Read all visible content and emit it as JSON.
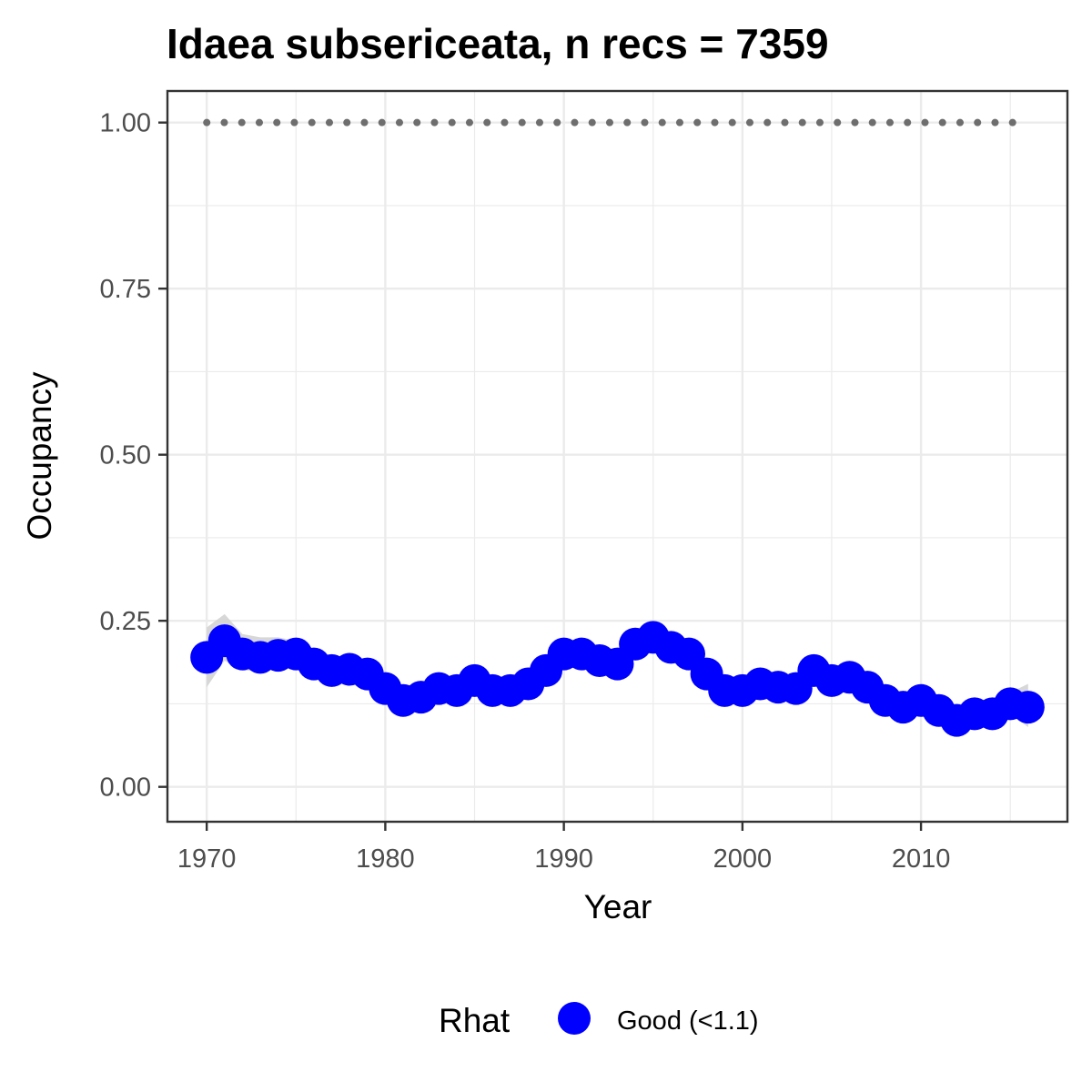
{
  "chart_data": {
    "type": "line",
    "title": "Idaea subsericeata, n recs = 7359",
    "xlabel": "Year",
    "ylabel": "Occupancy",
    "xlim": [
      1967.8,
      2018.2
    ],
    "ylim": [
      -0.0525,
      1.0475
    ],
    "x_ticks": [
      1970,
      1980,
      1990,
      2000,
      2010
    ],
    "x_tick_labels": [
      "1970",
      "1980",
      "1990",
      "2000",
      "2010"
    ],
    "y_ticks": [
      0,
      0.25,
      0.5,
      0.75,
      1
    ],
    "y_tick_labels": [
      "0.00",
      "0.25",
      "0.50",
      "0.75",
      "1.00"
    ],
    "grid": true,
    "legend": {
      "title": "Rhat",
      "position": "bottom",
      "entries": [
        {
          "label": "Good (<1.1)",
          "color": "#0000ff"
        }
      ]
    },
    "colors": {
      "series": "#0000ff",
      "ribbon": "#d3d3d3",
      "reference": "#6e6e6e",
      "panel_border": "#333333",
      "grid": "#ebebeb"
    },
    "x": [
      1970,
      1971,
      1972,
      1973,
      1974,
      1975,
      1976,
      1977,
      1978,
      1979,
      1980,
      1981,
      1982,
      1983,
      1984,
      1985,
      1986,
      1987,
      1988,
      1989,
      1990,
      1991,
      1992,
      1993,
      1994,
      1995,
      1996,
      1997,
      1998,
      1999,
      2000,
      2001,
      2002,
      2003,
      2004,
      2005,
      2006,
      2007,
      2008,
      2009,
      2010,
      2011,
      2012,
      2013,
      2014,
      2015,
      2016
    ],
    "series": [
      {
        "name": "Good (<1.1)",
        "values": [
          0.195,
          0.22,
          0.2,
          0.195,
          0.198,
          0.2,
          0.185,
          0.175,
          0.177,
          0.17,
          0.148,
          0.13,
          0.135,
          0.148,
          0.145,
          0.16,
          0.145,
          0.145,
          0.155,
          0.175,
          0.2,
          0.2,
          0.19,
          0.185,
          0.215,
          0.225,
          0.21,
          0.2,
          0.17,
          0.145,
          0.145,
          0.155,
          0.15,
          0.148,
          0.175,
          0.16,
          0.165,
          0.15,
          0.13,
          0.12,
          0.13,
          0.115,
          0.1,
          0.11,
          0.11,
          0.125,
          0.12
        ],
        "lower": [
          0.15,
          0.19,
          0.175,
          0.175,
          0.178,
          0.183,
          0.168,
          0.158,
          0.16,
          0.153,
          0.13,
          0.118,
          0.12,
          0.132,
          0.13,
          0.145,
          0.13,
          0.13,
          0.14,
          0.16,
          0.183,
          0.185,
          0.175,
          0.17,
          0.2,
          0.21,
          0.195,
          0.185,
          0.155,
          0.13,
          0.13,
          0.14,
          0.135,
          0.133,
          0.16,
          0.145,
          0.15,
          0.135,
          0.115,
          0.107,
          0.115,
          0.1,
          0.088,
          0.097,
          0.097,
          0.11,
          0.09
        ],
        "upper": [
          0.24,
          0.26,
          0.23,
          0.225,
          0.225,
          0.22,
          0.205,
          0.195,
          0.197,
          0.19,
          0.168,
          0.145,
          0.152,
          0.165,
          0.162,
          0.177,
          0.162,
          0.162,
          0.172,
          0.192,
          0.22,
          0.217,
          0.207,
          0.202,
          0.232,
          0.242,
          0.227,
          0.217,
          0.187,
          0.162,
          0.162,
          0.172,
          0.167,
          0.165,
          0.192,
          0.177,
          0.182,
          0.167,
          0.147,
          0.135,
          0.147,
          0.132,
          0.115,
          0.125,
          0.125,
          0.142,
          0.155
        ]
      }
    ],
    "reference_line": {
      "y": 1.0,
      "x_start": 1970,
      "x_end": 2016,
      "style": "dotted"
    }
  }
}
